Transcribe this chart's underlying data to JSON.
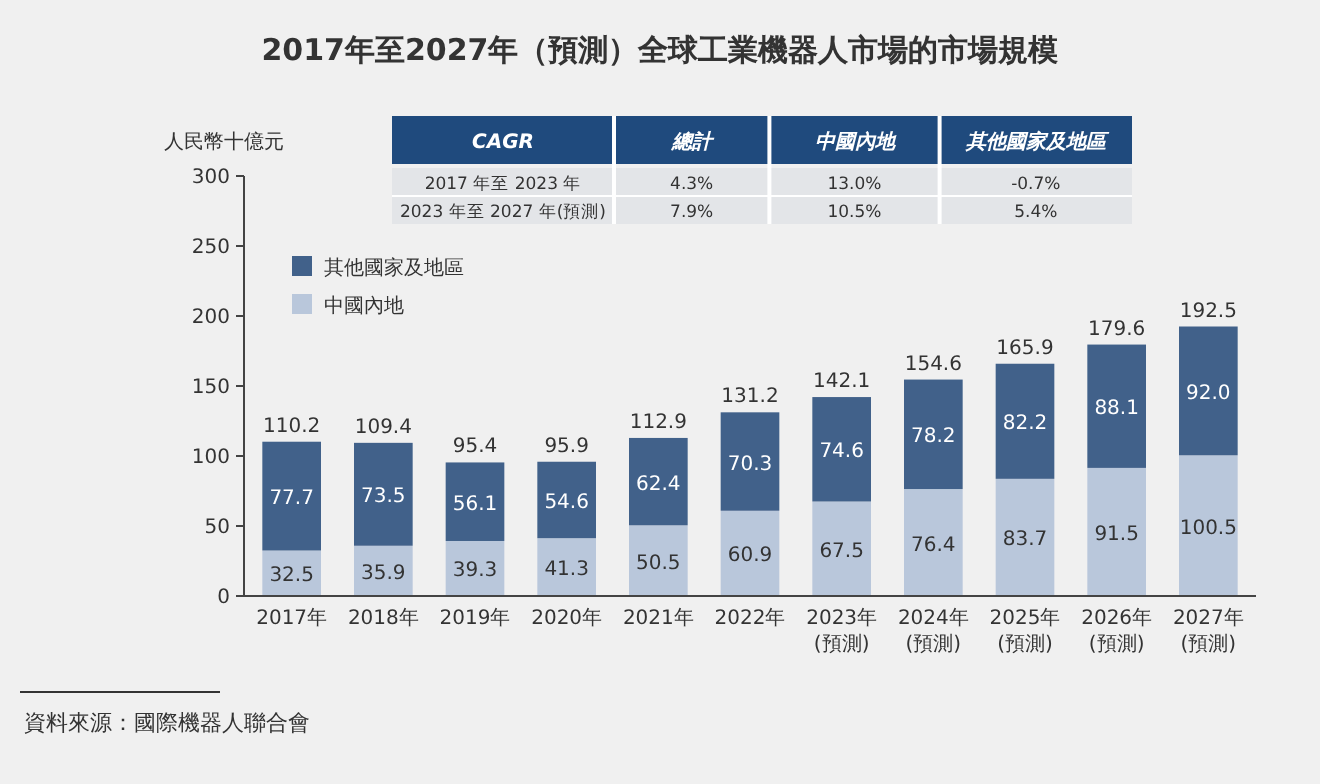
{
  "chart_data": {
    "type": "bar",
    "title": "2017年至2027年（預測）全球工業機器人市場的市場規模",
    "ylabel": "人民幣十億元",
    "categories": [
      "2017年",
      "2018年",
      "2019年",
      "2020年",
      "2021年",
      "2022年",
      "2023年\n(預測)",
      "2024年\n(預測)",
      "2025年\n(預測)",
      "2026年\n(預測)",
      "2027年\n(預測)"
    ],
    "series": [
      {
        "name": "中國內地",
        "color": "#b9c7db",
        "values": [
          32.5,
          35.9,
          39.3,
          41.3,
          50.5,
          60.9,
          67.5,
          76.4,
          83.7,
          91.5,
          100.5
        ],
        "value_labels": [
          "32.5",
          "35.9",
          "39.3",
          "41.3",
          "50.5",
          "60.9",
          "67.5",
          "76.4",
          "83.7",
          "91.5",
          "100.5"
        ]
      },
      {
        "name": "其他國家及地區",
        "color": "#41618a",
        "values": [
          77.7,
          73.5,
          56.1,
          54.6,
          62.4,
          70.3,
          74.6,
          78.2,
          82.2,
          88.1,
          92.0
        ],
        "value_labels": [
          "77.7",
          "73.5",
          "56.1",
          "54.6",
          "62.4",
          "70.3",
          "74.6",
          "78.2",
          "82.2",
          "88.1",
          "92.0"
        ]
      }
    ],
    "stacked": true,
    "totals": [
      "110.2",
      "109.4",
      "95.4",
      "95.9",
      "112.9",
      "131.2",
      "142.1",
      "154.6",
      "165.9",
      "179.6",
      "192.5"
    ],
    "ylim": [
      0,
      300
    ],
    "yticks": [
      0,
      50,
      100,
      150,
      200,
      250,
      300
    ],
    "grid": false,
    "legend": "top left",
    "annotations": [
      "CAGR",
      "總計",
      "中國內地",
      "其他國家及地區",
      "2017 年至 2023 年",
      "4.3%",
      "13.0%",
      "-0.7%",
      "2023 年至 2027 年(預測)",
      "7.9%",
      "10.5%",
      "5.4%",
      "資料來源：國際機器人聯合會"
    ]
  }
}
